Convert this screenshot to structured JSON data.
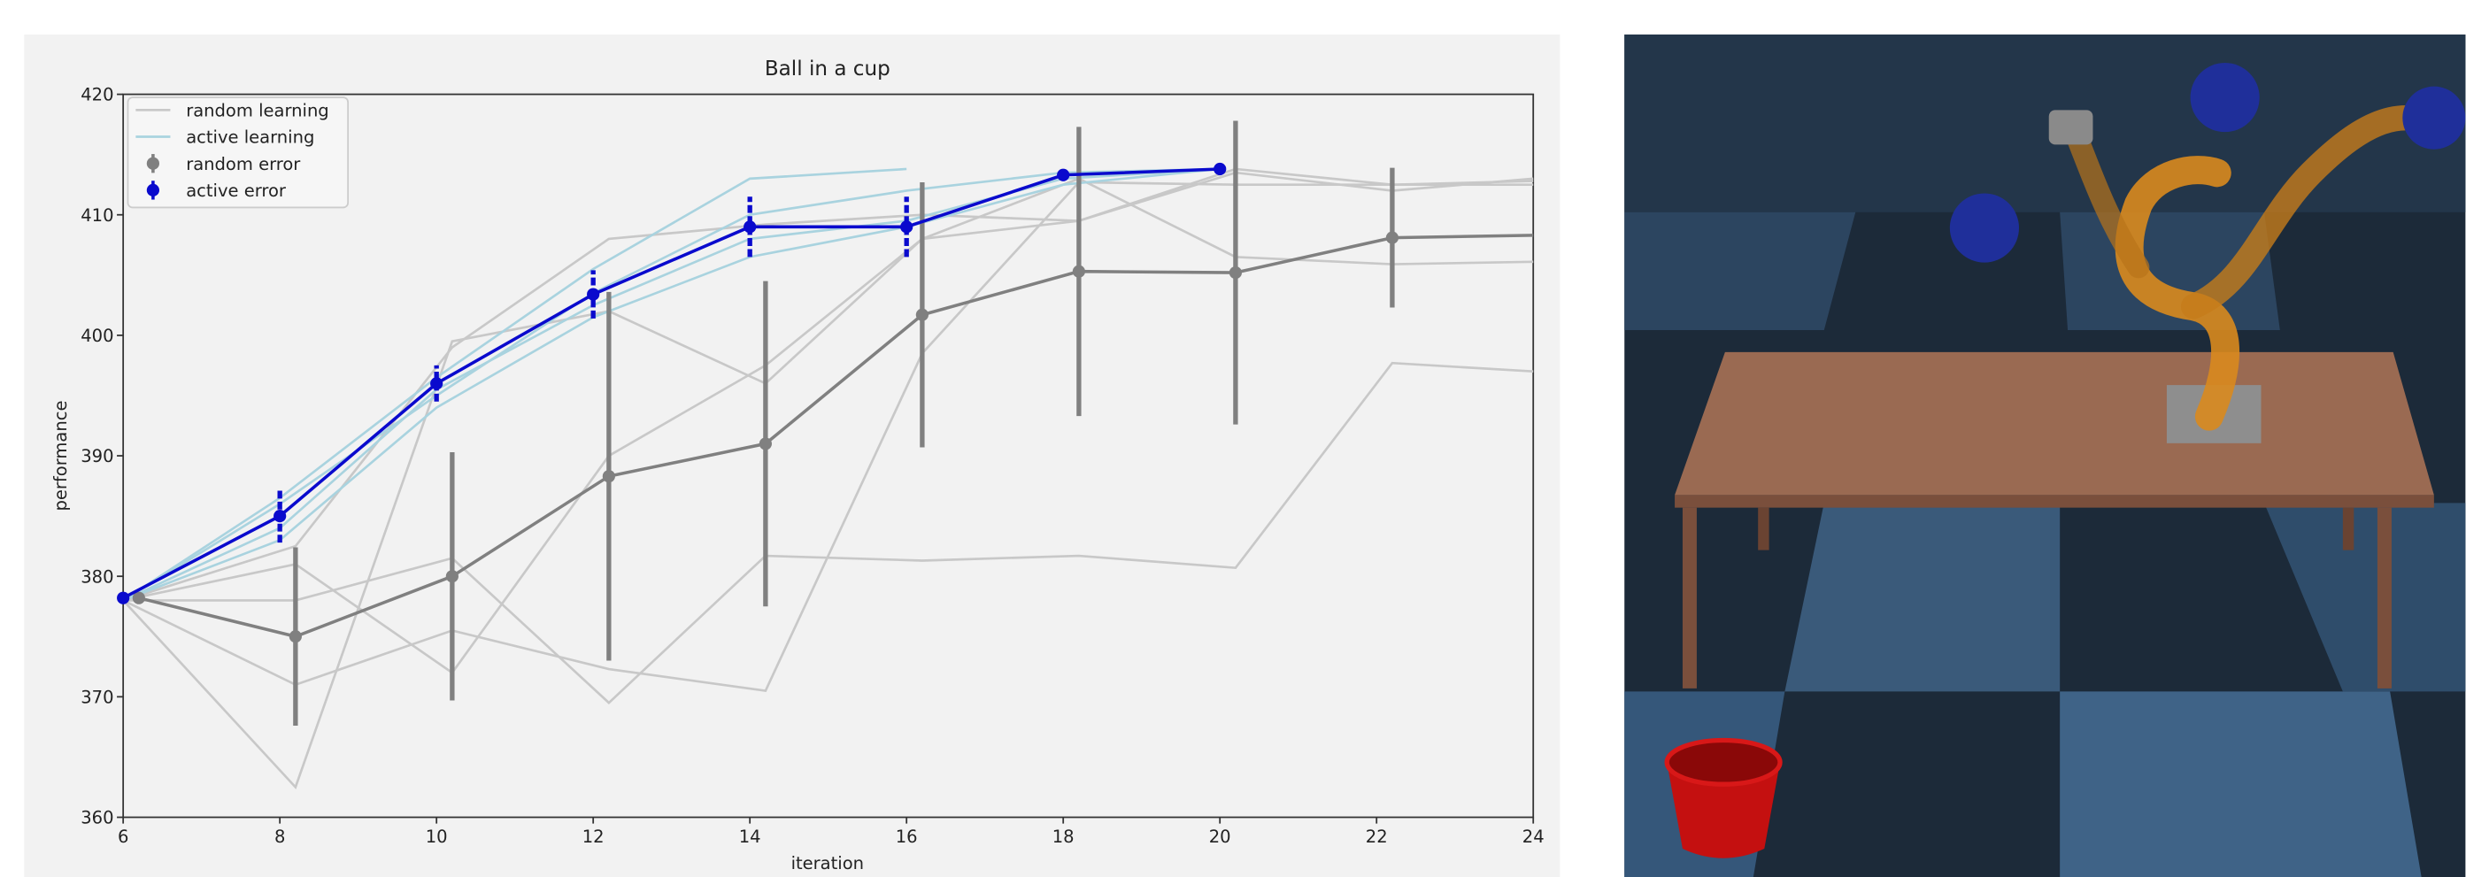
{
  "chart_data": {
    "type": "line",
    "title": "Ball in a cup",
    "x_label": "iteration",
    "y_label": "performance",
    "xlim": [
      6,
      24
    ],
    "ylim": [
      360,
      420
    ],
    "xticks": [
      6,
      8,
      10,
      12,
      14,
      16,
      18,
      20,
      22,
      24
    ],
    "yticks": [
      360,
      370,
      380,
      390,
      400,
      410,
      420
    ],
    "legend": "upper left",
    "series": [
      {
        "name": "random learning",
        "color": "#c8c8c8",
        "x": [
          6,
          8.2,
          10.2,
          12.2,
          14.2,
          16.2,
          18.2,
          20.2,
          22.2,
          24
        ],
        "runs": [
          [
            378,
            362.5,
            399.5,
            402,
            396,
            408,
            409.5,
            413.5,
            412,
            413
          ],
          [
            378,
            371,
            375.5,
            372.3,
            370.5,
            398.5,
            412.7,
            412.5,
            412.5,
            412.8
          ],
          [
            378,
            378,
            381.5,
            369.5,
            381.7,
            381.3,
            381.7,
            380.7,
            397.7,
            397
          ],
          [
            378,
            381,
            372,
            390,
            397.5,
            408,
            413,
            406.5,
            405.9,
            406.1
          ],
          [
            378,
            382.5,
            399,
            408,
            409.2,
            410,
            409.5,
            413.8,
            412.5,
            412.5
          ]
        ]
      },
      {
        "name": "active learning",
        "color": "#a9d3df",
        "x": [
          6,
          8,
          10,
          12,
          14,
          16,
          18,
          20
        ],
        "runs": [
          [
            378,
            386.5,
            396.5,
            405.5,
            413,
            413.8,
            null,
            null
          ],
          [
            378,
            386,
            395,
            403.5,
            410,
            412,
            413.5,
            413.8
          ],
          [
            378,
            384,
            395.5,
            402.5,
            408,
            409.5,
            413,
            413.8
          ],
          [
            378,
            383,
            394,
            401.5,
            406.5,
            409,
            412.5,
            413.8
          ]
        ]
      },
      {
        "name": "random error",
        "color": "#808080",
        "x": [
          6.2,
          8.2,
          10.2,
          12.2,
          14.2,
          16.2,
          18.2,
          20.2,
          22.2,
          24
        ],
        "values": [
          378.2,
          375,
          380,
          388.3,
          391,
          401.7,
          405.3,
          405.2,
          408.1,
          408.3
        ],
        "errors": [
          0,
          7.4,
          10.3,
          15.3,
          13.5,
          11,
          12,
          12.6,
          5.8,
          null
        ]
      },
      {
        "name": "active error",
        "color": "#0a0acd",
        "x": [
          6,
          8,
          10,
          12,
          14,
          16,
          18,
          20
        ],
        "values": [
          378.2,
          385,
          396,
          403.4,
          409,
          409,
          413.3,
          413.8
        ],
        "errors": [
          0,
          2.2,
          1.5,
          2,
          2.5,
          2.5,
          0,
          0
        ]
      }
    ]
  }
}
